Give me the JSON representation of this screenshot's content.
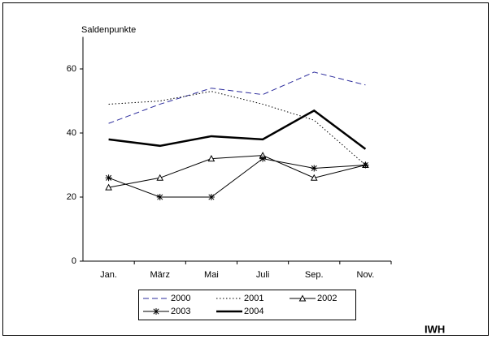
{
  "chart_data": {
    "type": "line",
    "y_label": "Saldenpunkte",
    "source": "IWH",
    "categories": [
      "Jan.",
      "März",
      "Mai",
      "Juli",
      "Sep.",
      "Nov."
    ],
    "ylim": [
      0,
      70
    ],
    "yticks": [
      0,
      20,
      40,
      60
    ],
    "legend": "bottom",
    "series": [
      {
        "name": "2000",
        "color": "#2b2b9c",
        "line_style": "dashed",
        "values": [
          43,
          49,
          54,
          52,
          59,
          55
        ]
      },
      {
        "name": "2001",
        "color": "#000000",
        "line_style": "dotted",
        "values": [
          49,
          50,
          53,
          49,
          44,
          30
        ]
      },
      {
        "name": "2002",
        "color": "#000000",
        "line_style": "solid",
        "marker": "triangle",
        "values": [
          23,
          26,
          32,
          33,
          26,
          30
        ]
      },
      {
        "name": "2003",
        "color": "#000000",
        "line_style": "solid",
        "marker": "asterisk",
        "values": [
          26,
          20,
          20,
          32,
          29,
          30
        ]
      },
      {
        "name": "2004",
        "color": "#000000",
        "line_style": "solid",
        "line_width": 2.5,
        "values": [
          38,
          36,
          39,
          38,
          47,
          35
        ]
      }
    ]
  }
}
